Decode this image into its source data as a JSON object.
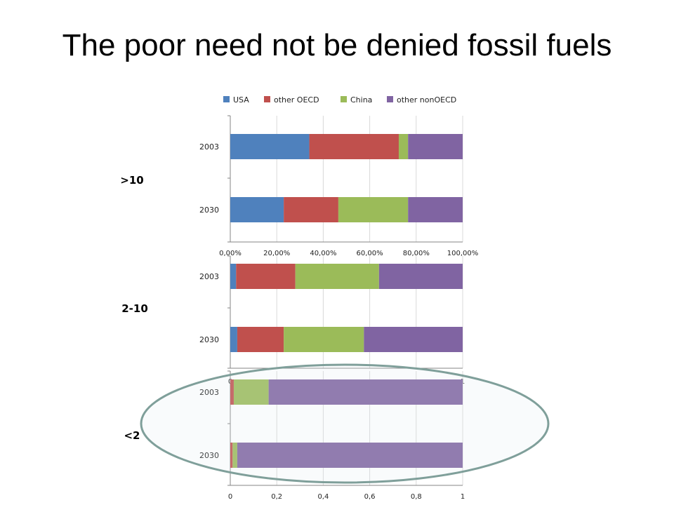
{
  "slide": {
    "title": "The poor need not be denied fossil fuels"
  },
  "colors": {
    "USA": "#4f81bd",
    "other OECD": "#c0504d",
    "China": "#9bbb59",
    "other nonOECD": "#8064a2"
  },
  "chart_data": [
    {
      "type": "bar",
      "orientation": "horizontal",
      "stacked": "percent",
      "group_label": ">10",
      "categories": [
        "2003",
        "2030"
      ],
      "series": [
        {
          "name": "USA",
          "values": [
            0.34,
            0.23
          ]
        },
        {
          "name": "other OECD",
          "values": [
            0.385,
            0.235
          ]
        },
        {
          "name": "China",
          "values": [
            0.04,
            0.3
          ]
        },
        {
          "name": "other nonOECD",
          "values": [
            0.235,
            0.235
          ]
        }
      ],
      "xticks": [
        "0,00%",
        "20,00%",
        "40,00%",
        "60,00%",
        "80,00%",
        "100,00%"
      ],
      "xlim": [
        0,
        1
      ],
      "legend": "top"
    },
    {
      "type": "bar",
      "orientation": "horizontal",
      "stacked": "percent",
      "group_label": "2-10",
      "categories": [
        "2003",
        "2030"
      ],
      "series": [
        {
          "name": "USA",
          "values": [
            0.025,
            0.03
          ]
        },
        {
          "name": "other OECD",
          "values": [
            0.255,
            0.2
          ]
        },
        {
          "name": "China",
          "values": [
            0.36,
            0.345
          ]
        },
        {
          "name": "other nonOECD",
          "values": [
            0.36,
            0.425
          ]
        }
      ],
      "xticks": [
        "0",
        "1"
      ],
      "xlim": [
        0,
        1
      ]
    },
    {
      "type": "bar",
      "orientation": "horizontal",
      "stacked": "percent",
      "group_label": "<2",
      "categories": [
        "2003",
        "2030"
      ],
      "series": [
        {
          "name": "USA",
          "values": [
            0.0,
            0.0
          ]
        },
        {
          "name": "other OECD",
          "values": [
            0.015,
            0.01
          ]
        },
        {
          "name": "China",
          "values": [
            0.15,
            0.02
          ]
        },
        {
          "name": "other nonOECD",
          "values": [
            0.835,
            0.97
          ]
        }
      ],
      "xticks": [
        "0",
        "0,2",
        "0,4",
        "0,6",
        "0,8",
        "1"
      ],
      "xlim": [
        0,
        1
      ]
    }
  ]
}
